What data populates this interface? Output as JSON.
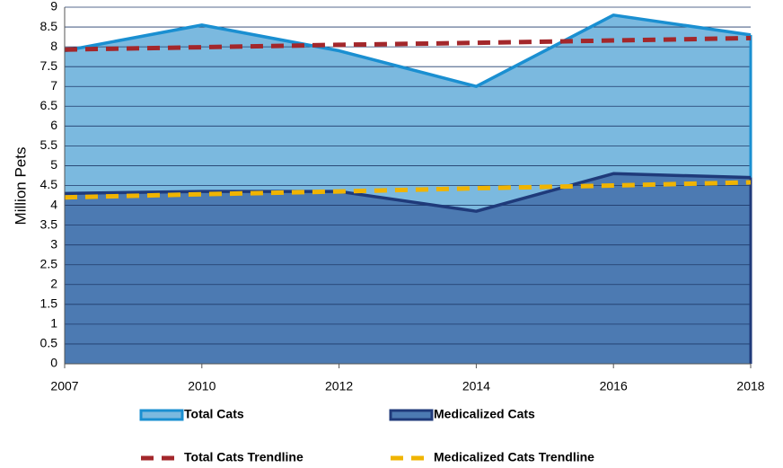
{
  "chart_data": {
    "type": "area",
    "ylabel": "Million Pets",
    "categories": [
      "2007",
      "2010",
      "2012",
      "2014",
      "2016",
      "2018"
    ],
    "ylim": [
      0,
      9
    ],
    "yticks": [
      0,
      0.5,
      1,
      1.5,
      2,
      2.5,
      3,
      3.5,
      4,
      4.5,
      5,
      5.5,
      6,
      6.5,
      7,
      7.5,
      8,
      8.5,
      9
    ],
    "grid": true,
    "legend": "bottom",
    "series": [
      {
        "name": "Total Cats",
        "type": "area",
        "color": "#1a8fd1",
        "fill": "#7bb9df",
        "values": [
          7.9,
          8.55,
          7.9,
          7.0,
          8.8,
          8.3
        ]
      },
      {
        "name": "Medicalized Cats",
        "type": "area",
        "color": "#1f3a7a",
        "fill": "#4c7ab2",
        "values": [
          4.3,
          4.35,
          4.35,
          3.85,
          4.8,
          4.7
        ]
      },
      {
        "name": "Total Cats Trendline",
        "type": "line",
        "dashed": true,
        "color": "#a3272b",
        "values": [
          7.93,
          7.99,
          8.05,
          8.1,
          8.16,
          8.22
        ]
      },
      {
        "name": "Medicalized Cats Trendline",
        "type": "line",
        "dashed": true,
        "color": "#f0b400",
        "values": [
          4.2,
          4.28,
          4.35,
          4.43,
          4.5,
          4.58
        ]
      }
    ]
  }
}
